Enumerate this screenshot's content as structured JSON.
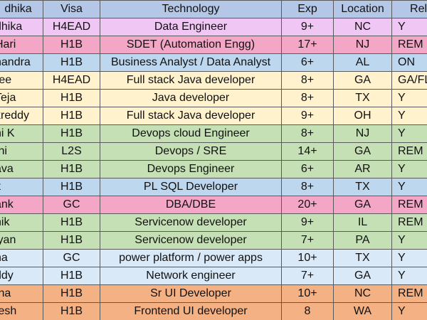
{
  "header": [
    "dhika",
    "Visa",
    "Technology",
    "Exp",
    "Location",
    "Relo"
  ],
  "colors": {
    "header": "#b4c7e7",
    "pink": "#f4a6c6",
    "yellow": "#fff2cc",
    "green": "#c5e0b4",
    "blue": "#bdd7ee",
    "salmon": "#f4b183",
    "lilac": "#f0c6f4",
    "lightblue": "#dae9f8"
  },
  "rows": [
    {
      "name": "dhika",
      "visa": "H4EAD",
      "tech": "Data Engineer",
      "exp": "9+",
      "loc": "NC",
      "reloc": "Y",
      "color": "#f0c6f4"
    },
    {
      "name": "Hari",
      "visa": "H1B",
      "tech": "SDET (Automation Engg)",
      "exp": "17+",
      "loc": "NJ",
      "reloc": "REM",
      "color": "#f4a6c6"
    },
    {
      "name": "handra",
      "visa": "H1B",
      "tech": "Business Analyst / Data Analyst",
      "exp": "6+",
      "loc": "AL",
      "reloc": "ON",
      "color": "#bdd7ee"
    },
    {
      "name": "ree",
      "visa": "H4EAD",
      "tech": "Full stack Java developer",
      "exp": "8+",
      "loc": "GA",
      "reloc": "GA/FL/",
      "color": "#fff2cc"
    },
    {
      "name": "Teja",
      "visa": "H1B",
      "tech": "Java developer",
      "exp": "8+",
      "loc": "TX",
      "reloc": "Y",
      "color": "#fff2cc"
    },
    {
      "name": "kreddy",
      "visa": "H1B",
      "tech": "Full stack Java developer",
      "exp": "9+",
      "loc": "OH",
      "reloc": "Y",
      "color": "#fff2cc"
    },
    {
      "name": "ni K",
      "visa": "H1B",
      "tech": "Devops cloud Engineer",
      "exp": "8+",
      "loc": "NJ",
      "reloc": "Y",
      "color": "#c5e0b4"
    },
    {
      "name": "thi",
      "visa": "L2S",
      "tech": "Devops / SRE",
      "exp": "14+",
      "loc": "GA",
      "reloc": "REM",
      "color": "#c5e0b4"
    },
    {
      "name": "ava",
      "visa": "H1B",
      "tech": "Devops Engineer",
      "exp": "6+",
      "loc": "AR",
      "reloc": "Y",
      "color": "#c5e0b4"
    },
    {
      "name": "it",
      "visa": "H1B",
      "tech": "PL SQL Developer",
      "exp": "8+",
      "loc": "TX",
      "reloc": "Y",
      "color": "#bdd7ee"
    },
    {
      "name": "ank",
      "visa": "GC",
      "tech": "DBA/DBE",
      "exp": "20+",
      "loc": "GA",
      "reloc": "REM",
      "color": "#f4a6c6"
    },
    {
      "name": "nik",
      "visa": "H1B",
      "tech": "Servicenow developer",
      "exp": "9+",
      "loc": "IL",
      "reloc": "REM",
      "color": "#c5e0b4"
    },
    {
      "name": "lyan",
      "visa": "H1B",
      "tech": "Servicenow developer",
      "exp": "7+",
      "loc": "PA",
      "reloc": "Y",
      "color": "#c5e0b4"
    },
    {
      "name": "na",
      "visa": "GC",
      "tech": "power platform / power apps",
      "exp": "10+",
      "loc": "TX",
      "reloc": "Y",
      "color": "#dae9f8"
    },
    {
      "name": "ddy",
      "visa": "H1B",
      "tech": "Network engineer",
      "exp": "7+",
      "loc": "GA",
      "reloc": "Y",
      "color": "#dae9f8"
    },
    {
      "name": "tha",
      "visa": "H1B",
      "tech": "Sr UI Developer",
      "exp": "10+",
      "loc": "NC",
      "reloc": "REM",
      "color": "#f4b183"
    },
    {
      "name": "tesh",
      "visa": "H1B",
      "tech": "Frontend UI developer",
      "exp": "8",
      "loc": "WA",
      "reloc": "Y",
      "color": "#f4b183"
    }
  ]
}
